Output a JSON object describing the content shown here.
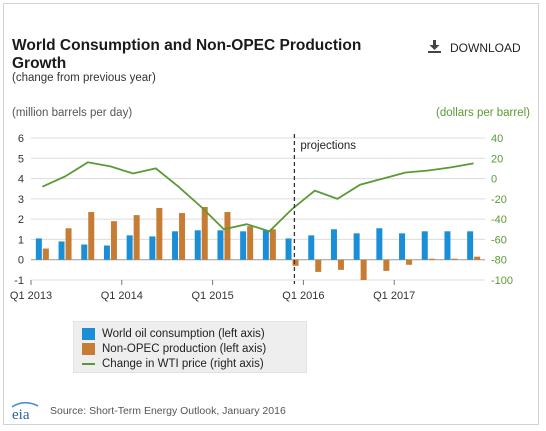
{
  "header": {
    "title": "World Consumption and Non-OPEC Production Growth",
    "subtitle": "(change from previous year)",
    "download_label": "DOWNLOAD"
  },
  "footer": {
    "logo_text": "eia",
    "source": "Source: Short-Term Energy Outlook, January 2016"
  },
  "colors": {
    "consumption": "#1a8fd8",
    "production": "#c67c33",
    "wti": "#5a9a35",
    "grid": "#dcdcdc"
  },
  "chart_data": {
    "type": "bar",
    "ylabel_left": "(million barrels per day)",
    "ylabel_right": "(dollars per barrel)",
    "ylim_left": [
      -1,
      6
    ],
    "yticks_left": [
      -1,
      0,
      1,
      2,
      3,
      4,
      5,
      6
    ],
    "ylim_right": [
      -100,
      40
    ],
    "yticks_right": [
      -100,
      -80,
      -60,
      -40,
      -20,
      0,
      20,
      40
    ],
    "grid": true,
    "annotation": "projections",
    "projection_start_index": 12,
    "x_tick_labels": [
      {
        "index": 0,
        "label": "Q1 2013"
      },
      {
        "index": 4,
        "label": "Q1 2014"
      },
      {
        "index": 8,
        "label": "Q1 2015"
      },
      {
        "index": 12,
        "label": "Q1 2016"
      },
      {
        "index": 16,
        "label": "Q1 2017"
      }
    ],
    "categories": [
      "Q1 2013",
      "Q2 2013",
      "Q3 2013",
      "Q4 2013",
      "Q1 2014",
      "Q2 2014",
      "Q3 2014",
      "Q4 2014",
      "Q1 2015",
      "Q2 2015",
      "Q3 2015",
      "Q4 2015",
      "Q1 2016",
      "Q2 2016",
      "Q3 2016",
      "Q4 2016",
      "Q1 2017",
      "Q2 2017",
      "Q3 2017",
      "Q4 2017"
    ],
    "series": [
      {
        "name": "World oil consumption (left axis)",
        "axis": "left",
        "kind": "bar",
        "values": [
          1.05,
          0.9,
          0.75,
          0.7,
          1.2,
          1.15,
          1.4,
          1.45,
          1.45,
          1.4,
          1.45,
          1.05,
          1.2,
          1.5,
          1.3,
          1.55,
          1.3,
          1.4,
          1.4,
          1.4
        ]
      },
      {
        "name": "Non-OPEC production (left axis)",
        "axis": "left",
        "kind": "bar",
        "values": [
          0.55,
          1.55,
          2.35,
          1.9,
          2.2,
          2.55,
          2.3,
          2.6,
          2.35,
          1.65,
          1.5,
          -0.3,
          -0.6,
          -0.5,
          -1.0,
          -0.55,
          -0.25,
          0.05,
          0.05,
          0.15
        ]
      },
      {
        "name": "Change in WTI price (right axis)",
        "axis": "right",
        "kind": "line",
        "values": [
          -8,
          2,
          16,
          12,
          5,
          10,
          -8,
          -28,
          -50,
          -45,
          -52,
          -30,
          -12,
          -20,
          -6,
          0,
          6,
          8,
          11,
          15
        ]
      }
    ]
  }
}
